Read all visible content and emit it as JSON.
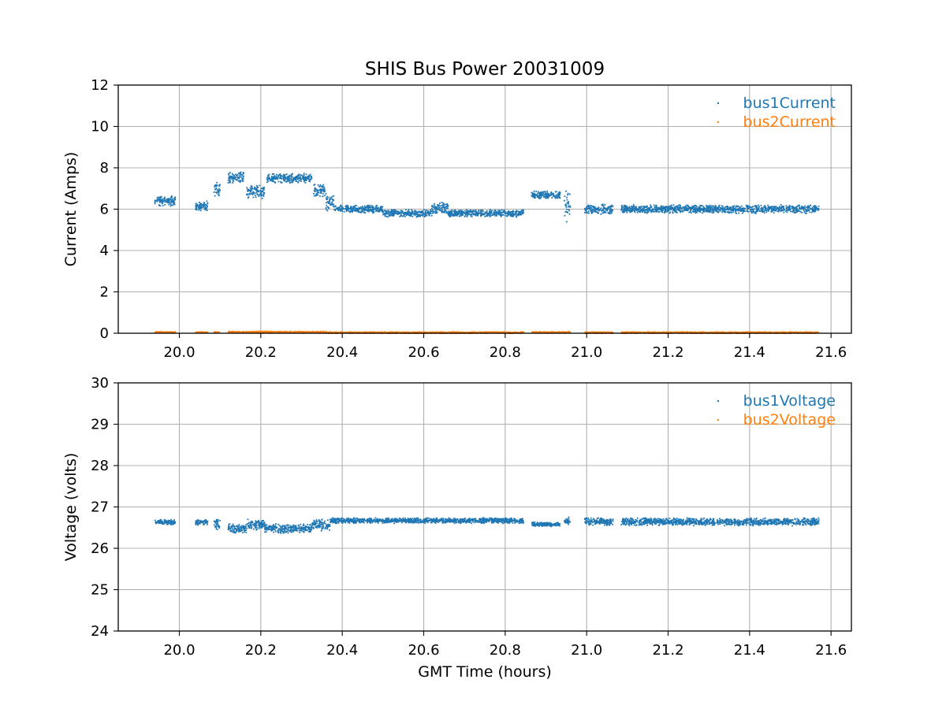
{
  "chart_data": [
    {
      "type": "scatter",
      "title": "SHIS Bus Power 20031009",
      "xlabel": "",
      "ylabel": "Current (Amps)",
      "xlim": [
        19.85,
        21.65
      ],
      "ylim": [
        0,
        12
      ],
      "xticks": [
        "20.0",
        "20.2",
        "20.4",
        "20.6",
        "20.8",
        "21.0",
        "21.2",
        "21.4",
        "21.6"
      ],
      "yticks": [
        "0",
        "2",
        "4",
        "6",
        "8",
        "10",
        "12"
      ],
      "grid": true,
      "legend": "top-right",
      "series": [
        {
          "name": "bus1Current",
          "color": "#1f77b4",
          "segments": [
            {
              "x0": 19.94,
              "x1": 19.99,
              "y": 6.4,
              "spread": 0.3
            },
            {
              "x0": 20.04,
              "x1": 20.07,
              "y": 6.15,
              "spread": 0.25
            },
            {
              "x0": 20.085,
              "x1": 20.1,
              "y": 6.9,
              "spread": 0.4
            },
            {
              "x0": 20.12,
              "x1": 20.16,
              "y": 7.55,
              "spread": 0.3
            },
            {
              "x0": 20.165,
              "x1": 20.21,
              "y": 6.85,
              "spread": 0.35
            },
            {
              "x0": 20.215,
              "x1": 20.325,
              "y": 7.5,
              "spread": 0.25
            },
            {
              "x0": 20.33,
              "x1": 20.36,
              "y": 6.9,
              "spread": 0.35
            },
            {
              "x0": 20.36,
              "x1": 20.38,
              "y": 6.3,
              "spread": 0.4
            },
            {
              "x0": 20.38,
              "x1": 20.5,
              "y": 6.0,
              "spread": 0.2
            },
            {
              "x0": 20.5,
              "x1": 20.62,
              "y": 5.8,
              "spread": 0.2
            },
            {
              "x0": 20.62,
              "x1": 20.66,
              "y": 6.05,
              "spread": 0.3
            },
            {
              "x0": 20.66,
              "x1": 20.845,
              "y": 5.8,
              "spread": 0.2
            },
            {
              "x0": 20.865,
              "x1": 20.935,
              "y": 6.68,
              "spread": 0.2
            },
            {
              "x0": 20.945,
              "x1": 20.96,
              "y": 6.1,
              "spread": 0.8
            },
            {
              "x0": 20.995,
              "x1": 21.065,
              "y": 6.0,
              "spread": 0.25
            },
            {
              "x0": 21.085,
              "x1": 21.57,
              "y": 6.0,
              "spread": 0.22
            }
          ]
        },
        {
          "name": "bus2Current",
          "color": "#ff7f0e",
          "segments": [
            {
              "x0": 19.94,
              "x1": 19.99,
              "y": 0.04,
              "spread": 0.04
            },
            {
              "x0": 20.04,
              "x1": 20.07,
              "y": 0.04,
              "spread": 0.04
            },
            {
              "x0": 20.085,
              "x1": 20.1,
              "y": 0.04,
              "spread": 0.04
            },
            {
              "x0": 20.12,
              "x1": 20.36,
              "y": 0.05,
              "spread": 0.05
            },
            {
              "x0": 20.36,
              "x1": 20.845,
              "y": 0.03,
              "spread": 0.04
            },
            {
              "x0": 20.865,
              "x1": 20.96,
              "y": 0.04,
              "spread": 0.04
            },
            {
              "x0": 20.995,
              "x1": 21.065,
              "y": 0.03,
              "spread": 0.04
            },
            {
              "x0": 21.085,
              "x1": 21.57,
              "y": 0.03,
              "spread": 0.04
            }
          ]
        }
      ]
    },
    {
      "type": "scatter",
      "title": "",
      "xlabel": "GMT Time (hours)",
      "ylabel": "Voltage (volts)",
      "xlim": [
        19.85,
        21.65
      ],
      "ylim": [
        24,
        30
      ],
      "xticks": [
        "20.0",
        "20.2",
        "20.4",
        "20.6",
        "20.8",
        "21.0",
        "21.2",
        "21.4",
        "21.6"
      ],
      "yticks": [
        "24",
        "25",
        "26",
        "27",
        "28",
        "29",
        "30"
      ],
      "grid": true,
      "legend": "top-right",
      "series": [
        {
          "name": "bus1Voltage",
          "color": "#1f77b4",
          "segments": [
            {
              "x0": 19.94,
              "x1": 19.99,
              "y": 26.63,
              "spread": 0.07
            },
            {
              "x0": 20.04,
              "x1": 20.07,
              "y": 26.63,
              "spread": 0.07
            },
            {
              "x0": 20.085,
              "x1": 20.1,
              "y": 26.58,
              "spread": 0.15
            },
            {
              "x0": 20.12,
              "x1": 20.165,
              "y": 26.48,
              "spread": 0.12
            },
            {
              "x0": 20.165,
              "x1": 20.21,
              "y": 26.58,
              "spread": 0.15
            },
            {
              "x0": 20.21,
              "x1": 20.325,
              "y": 26.48,
              "spread": 0.12
            },
            {
              "x0": 20.325,
              "x1": 20.37,
              "y": 26.56,
              "spread": 0.15
            },
            {
              "x0": 20.37,
              "x1": 20.845,
              "y": 26.67,
              "spread": 0.07
            },
            {
              "x0": 20.865,
              "x1": 20.935,
              "y": 26.58,
              "spread": 0.06
            },
            {
              "x0": 20.945,
              "x1": 20.96,
              "y": 26.66,
              "spread": 0.1
            },
            {
              "x0": 20.995,
              "x1": 21.065,
              "y": 26.65,
              "spread": 0.1
            },
            {
              "x0": 21.085,
              "x1": 21.57,
              "y": 26.64,
              "spread": 0.1
            }
          ]
        },
        {
          "name": "bus2Voltage",
          "color": "#ff7f0e",
          "segments": []
        }
      ]
    }
  ]
}
